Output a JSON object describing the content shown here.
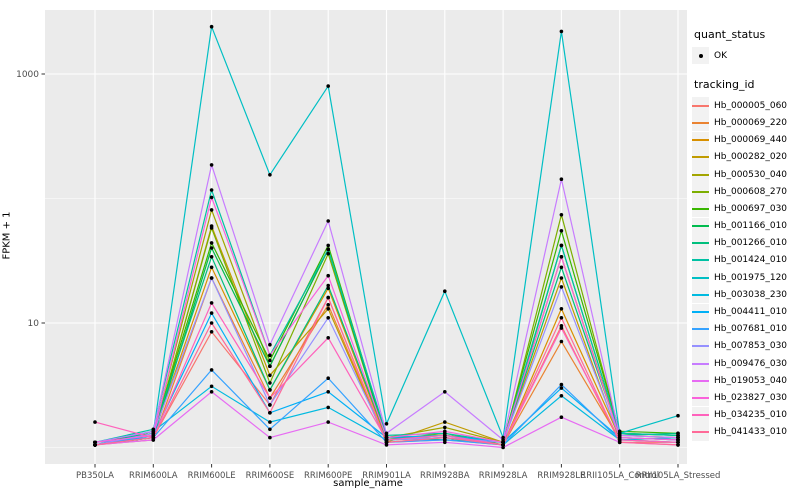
{
  "window": {
    "background": "#FFFFFF"
  },
  "legend": {
    "quant_status_title": "quant_status",
    "quant_status_items": [
      {
        "label": "OK"
      }
    ],
    "tracking_title": "tracking_id"
  },
  "chart_data": {
    "type": "line",
    "title": "",
    "xlabel": "sample_name",
    "ylabel": "FPKM + 1",
    "y_scale": "log10",
    "ylim": [
      0.75,
      3300
    ],
    "grid": true,
    "legend_position": "right",
    "panel_bg": "#EBEBEB",
    "grid_color": "#FFFFFF",
    "tick_color": "#333333",
    "tick_label_color": "#4D4D4D",
    "point_color": "#000000",
    "y_ticks": [
      {
        "value": 10,
        "label": "10"
      },
      {
        "value": 1000,
        "label": "1000"
      }
    ],
    "y_minor_gridlines": [
      1,
      100
    ],
    "categories": [
      "PB350LA",
      "RRIM600LA",
      "RRIM600LE",
      "RRIM600SE",
      "RRIM600PE",
      "RRIM901LA",
      "RRIM928BA",
      "RRIM928LA",
      "RRIM928LE",
      "RRII105LA_Control",
      "RRII105LA_Stressed"
    ],
    "series": [
      {
        "name": "Hb_000005_060",
        "color": "#F8766D",
        "values": [
          1.05,
          1.2,
          8.5,
          2.2,
          16,
          1.1,
          1.15,
          1.05,
          9.5,
          1.1,
          1.1
        ]
      },
      {
        "name": "Hb_000069_220",
        "color": "#EA8331",
        "values": [
          1.05,
          1.15,
          23,
          2.5,
          14,
          1.1,
          1.2,
          1.05,
          7.1,
          1.15,
          1.1
        ]
      },
      {
        "name": "Hb_000069_440",
        "color": "#D89000",
        "values": [
          1.1,
          1.25,
          28,
          2.9,
          19,
          1.15,
          1.25,
          1.05,
          13,
          1.2,
          1.15
        ]
      },
      {
        "name": "Hb_000282_020",
        "color": "#C09B00",
        "values": [
          1.05,
          1.2,
          60,
          3.8,
          13,
          1.1,
          1.6,
          1.1,
          23,
          1.15,
          1.2
        ]
      },
      {
        "name": "Hb_000530_040",
        "color": "#A3A500",
        "values": [
          1.1,
          1.3,
          81,
          4.5,
          39,
          1.2,
          1.45,
          1.1,
          34,
          1.25,
          1.2
        ]
      },
      {
        "name": "Hb_000608_270",
        "color": "#7CAE00",
        "values": [
          1.05,
          1.25,
          58,
          3.3,
          36,
          1.15,
          1.3,
          1.05,
          74,
          1.3,
          1.25
        ]
      },
      {
        "name": "Hb_000697_030",
        "color": "#39B600",
        "values": [
          1.1,
          1.3,
          44,
          5.0,
          42,
          1.2,
          1.25,
          1.1,
          55,
          1.35,
          1.3
        ]
      },
      {
        "name": "Hb_001166_010",
        "color": "#00BB4E",
        "values": [
          1.05,
          1.2,
          40,
          4.5,
          39,
          1.15,
          1.2,
          1.05,
          42,
          1.3,
          1.25
        ]
      },
      {
        "name": "Hb_001266_010",
        "color": "#00BF7D",
        "values": [
          1.05,
          1.35,
          34,
          2.9,
          20,
          1.2,
          1.15,
          1.1,
          28,
          1.25,
          1.3
        ]
      },
      {
        "name": "Hb_001424_010",
        "color": "#00C1A3",
        "values": [
          1.1,
          1.4,
          117,
          5.5,
          39,
          1.25,
          1.3,
          1.1,
          42,
          1.3,
          1.25
        ]
      },
      {
        "name": "Hb_001975_120",
        "color": "#00BFC4",
        "values": [
          1.05,
          1.3,
          2400,
          155,
          800,
          1.55,
          18,
          1.2,
          2200,
          1.3,
          1.8
        ]
      },
      {
        "name": "Hb_003038_230",
        "color": "#00BAE0",
        "values": [
          1.1,
          1.35,
          3.1,
          1.6,
          2.1,
          1.15,
          1.2,
          1.05,
          2.6,
          1.15,
          1.2
        ]
      },
      {
        "name": "Hb_004411_010",
        "color": "#00B0F6",
        "values": [
          1.05,
          1.25,
          12,
          1.9,
          2.8,
          1.2,
          1.25,
          1.1,
          3.0,
          1.2,
          1.15
        ]
      },
      {
        "name": "Hb_007681_010",
        "color": "#35A2FF",
        "values": [
          1.1,
          1.2,
          4.2,
          1.4,
          3.6,
          1.1,
          1.15,
          1.05,
          3.2,
          1.15,
          1.1
        ]
      },
      {
        "name": "Hb_007853_030",
        "color": "#9590FF",
        "values": [
          1.05,
          1.3,
          23,
          2.2,
          11,
          1.15,
          1.2,
          1.1,
          19.5,
          1.2,
          1.15
        ]
      },
      {
        "name": "Hb_009476_030",
        "color": "#C77CFF",
        "values": [
          1.1,
          1.35,
          186,
          6.7,
          66,
          1.3,
          2.8,
          1.15,
          143,
          1.25,
          1.2
        ]
      },
      {
        "name": "Hb_019053_040",
        "color": "#E76BF3",
        "values": [
          1.05,
          1.15,
          2.8,
          1.2,
          1.6,
          1.05,
          1.1,
          1.0,
          1.75,
          1.1,
          1.05
        ]
      },
      {
        "name": "Hb_023827_030",
        "color": "#FA62DB",
        "values": [
          1.1,
          1.25,
          102,
          5.5,
          24,
          1.2,
          1.35,
          1.1,
          34,
          1.2,
          1.15
        ]
      },
      {
        "name": "Hb_034235_010",
        "color": "#FF62BC",
        "values": [
          1.6,
          1.2,
          14.5,
          2.5,
          7.6,
          1.15,
          1.25,
          1.05,
          9.1,
          1.15,
          1.1
        ]
      },
      {
        "name": "Hb_041433_010",
        "color": "#FF6A98",
        "values": [
          1.05,
          1.2,
          10,
          1.9,
          16,
          1.1,
          1.2,
          1.05,
          11,
          1.1,
          1.05
        ]
      }
    ]
  }
}
